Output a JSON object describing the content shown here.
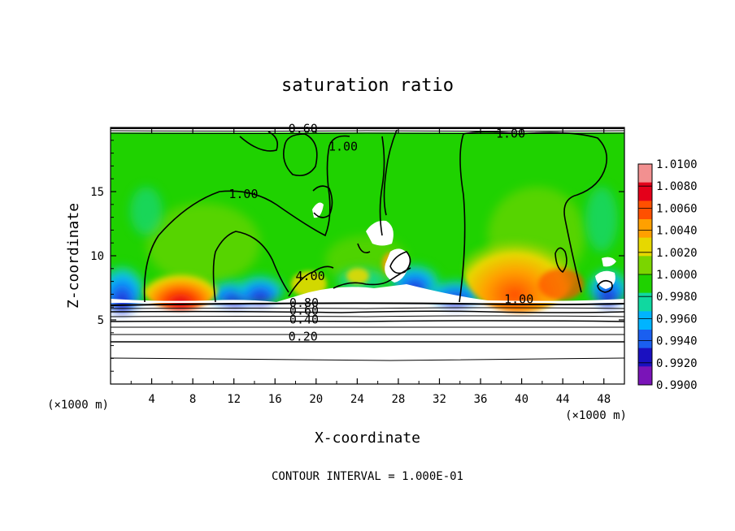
{
  "chart_data": {
    "type": "heatmap",
    "title": "saturation ratio",
    "xlabel": "X-coordinate",
    "ylabel": "Z-coordinate",
    "x_unit": "(×1000 m)",
    "y_unit": "(×1000 m)",
    "x_range": [
      0,
      50
    ],
    "y_range": [
      0,
      20
    ],
    "x_ticks": [
      "4",
      "8",
      "12",
      "16",
      "20",
      "24",
      "28",
      "32",
      "36",
      "40",
      "44",
      "48"
    ],
    "y_ticks": [
      "5",
      "10",
      "15"
    ],
    "footer": "CONTOUR INTERVAL = 1.000E-01",
    "colorbar": {
      "levels": [
        "1.0100",
        "1.0080",
        "1.0060",
        "1.0040",
        "1.0020",
        "1.0000",
        "0.9980",
        "0.9960",
        "0.9940",
        "0.9920",
        "0.9900"
      ],
      "colors": [
        "#f29090",
        "#e4001a",
        "#ff5000",
        "#ffa000",
        "#e6d800",
        "#7bd500",
        "#1fd200",
        "#10d8a0",
        "#00b4ff",
        "#1a5ff0",
        "#1a10c0",
        "#7a14b8"
      ]
    },
    "contour_labels": [
      {
        "text": "1.00",
        "x": 11.5,
        "z": 14.5
      },
      {
        "text": "1.00",
        "x": 21.2,
        "z": 18.2
      },
      {
        "text": "1.00",
        "x": 37.5,
        "z": 19.2
      },
      {
        "text": "1.00",
        "x": 38.3,
        "z": 6.3
      },
      {
        "text": "4.00",
        "x": 18.0,
        "z": 8.1
      },
      {
        "text": "0.60",
        "x": 17.3,
        "z": 19.6
      },
      {
        "text": "0.80",
        "x": 17.4,
        "z": 6.0
      },
      {
        "text": "0.60",
        "x": 17.4,
        "z": 5.4
      },
      {
        "text": "0.40",
        "x": 17.4,
        "z": 4.7
      },
      {
        "text": "0.20",
        "x": 17.3,
        "z": 3.4
      }
    ],
    "contour_levels_shown": [
      "0.20",
      "0.40",
      "0.60",
      "0.80",
      "1.00"
    ]
  }
}
